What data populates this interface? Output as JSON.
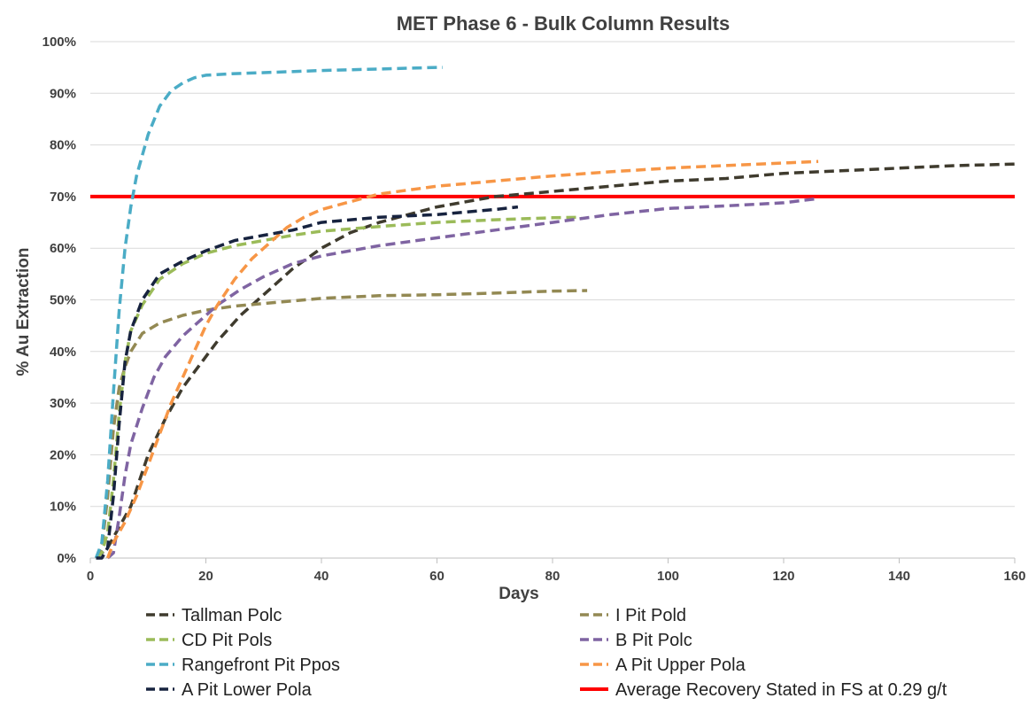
{
  "chart_data": {
    "type": "line",
    "title": "MET Phase 6 - Bulk Column Results",
    "xlabel": "Days",
    "ylabel": "% Au Extraction",
    "xlim": [
      0,
      160
    ],
    "ylim": [
      0,
      100
    ],
    "x_ticks": [
      "0",
      "20",
      "40",
      "60",
      "80",
      "100",
      "120",
      "140",
      "160"
    ],
    "y_ticks": [
      "0%",
      "10%",
      "20%",
      "30%",
      "40%",
      "50%",
      "60%",
      "70%",
      "80%",
      "90%",
      "100%"
    ],
    "grid": "horizontal",
    "legend_position": "bottom",
    "series": [
      {
        "name": "Tallman Polc",
        "color": "#3f3b2e",
        "style": "dashed",
        "x": [
          1,
          3,
          5,
          7,
          10,
          13,
          16,
          18,
          22,
          26,
          30,
          35,
          40,
          45,
          50,
          55,
          60,
          70,
          80,
          90,
          100,
          110,
          120,
          130,
          140,
          150,
          160
        ],
        "y": [
          0,
          2,
          6,
          10,
          20,
          27,
          33,
          36,
          42,
          47,
          51,
          56,
          60,
          63,
          65,
          66.5,
          68,
          70,
          71,
          72,
          73,
          73.5,
          74.5,
          75,
          75.5,
          76,
          76.3
        ]
      },
      {
        "name": "I Pit Pold",
        "color": "#938953",
        "style": "dashed",
        "x": [
          1,
          2,
          3,
          4,
          5,
          6,
          7,
          9,
          12,
          16,
          20,
          25,
          30,
          40,
          50,
          60,
          70,
          80,
          86
        ],
        "y": [
          0,
          2,
          12,
          25,
          33,
          37,
          40,
          43.5,
          45.5,
          47,
          48,
          48.8,
          49.3,
          50.3,
          50.8,
          51,
          51.3,
          51.7,
          51.8
        ]
      },
      {
        "name": "CD Pit Pols",
        "color": "#9bbb59",
        "style": "dashed",
        "x": [
          1,
          2,
          3,
          4,
          5,
          6,
          7,
          9,
          12,
          16,
          20,
          25,
          30,
          35,
          40,
          50,
          60,
          70,
          80,
          85
        ],
        "y": [
          0,
          1,
          5,
          15,
          28,
          38,
          44,
          49,
          54,
          57,
          59,
          60.5,
          61.5,
          62.5,
          63.3,
          64.2,
          65,
          65.5,
          65.9,
          66
        ]
      },
      {
        "name": "B Pit Polc",
        "color": "#7f64a2",
        "style": "dashed",
        "x": [
          3,
          4,
          5,
          6,
          7,
          9,
          11,
          13,
          16,
          19,
          22,
          26,
          30,
          35,
          40,
          50,
          60,
          70,
          80,
          90,
          100,
          110,
          120,
          126
        ],
        "y": [
          0,
          1,
          8,
          16,
          22,
          29,
          35,
          39,
          43,
          46,
          49,
          52,
          54.5,
          57,
          58.5,
          60.5,
          62,
          63.5,
          65,
          66.5,
          67.7,
          68.2,
          68.8,
          69.6
        ]
      },
      {
        "name": "Rangefront Pit Ppos",
        "color": "#4bacc6",
        "style": "dashed",
        "x": [
          1,
          2,
          3,
          4,
          5,
          6,
          7,
          8,
          10,
          12,
          14,
          16,
          18,
          20,
          25,
          30,
          40,
          50,
          60,
          61
        ],
        "y": [
          0,
          3,
          15,
          32,
          48,
          60,
          68,
          74,
          82,
          87.5,
          90.5,
          92,
          93,
          93.5,
          93.8,
          94,
          94.4,
          94.7,
          95,
          95
        ]
      },
      {
        "name": "A Pit Upper Pola",
        "color": "#f79646",
        "style": "dashed",
        "x": [
          3,
          4,
          6,
          8,
          10,
          12,
          14,
          16,
          18,
          20,
          22,
          25,
          28,
          31,
          34,
          37,
          40,
          45,
          50,
          60,
          70,
          80,
          90,
          100,
          110,
          120,
          126
        ],
        "y": [
          0,
          3,
          7,
          12,
          18,
          24,
          30,
          35,
          40,
          45,
          49,
          54,
          58,
          61,
          64,
          66,
          67.5,
          69,
          70.5,
          72,
          73,
          74,
          74.8,
          75.5,
          76,
          76.5,
          76.8
        ]
      },
      {
        "name": "A Pit Lower Pola",
        "color": "#17233f",
        "style": "dashed",
        "x": [
          1,
          2,
          3,
          4,
          5,
          6,
          7,
          9,
          12,
          16,
          20,
          25,
          30,
          35,
          40,
          50,
          60,
          70,
          74
        ],
        "y": [
          0,
          0,
          2,
          12,
          26,
          38,
          44,
          50,
          55,
          57.5,
          59.5,
          61.5,
          62.5,
          63.5,
          65,
          66,
          66.5,
          67.5,
          68
        ]
      },
      {
        "name": "Average Recovery Stated in FS at 0.29 g/t",
        "color": "#ff0000",
        "style": "solid",
        "x": [
          0,
          160
        ],
        "y": [
          70,
          70
        ]
      }
    ]
  }
}
